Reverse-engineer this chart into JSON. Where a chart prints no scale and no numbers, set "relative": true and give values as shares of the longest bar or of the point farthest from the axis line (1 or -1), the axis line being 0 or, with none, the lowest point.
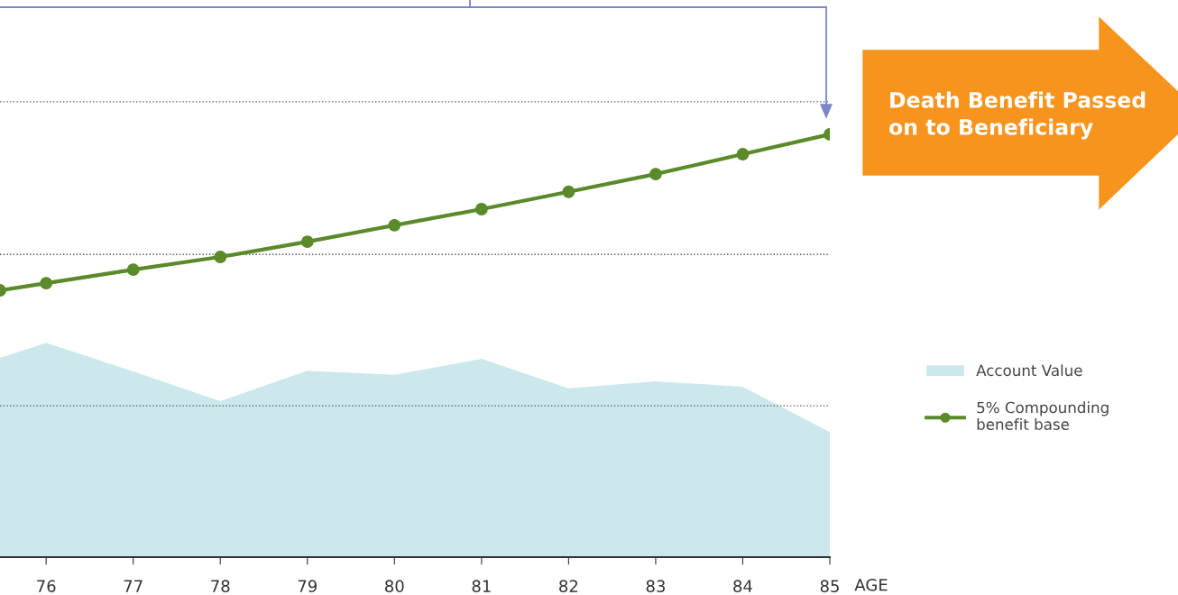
{
  "chart_data": {
    "type": "line",
    "relative": true,
    "xlabel": "AGE",
    "x": [
      75.47,
      76,
      77,
      78,
      79,
      80,
      81,
      82,
      83,
      84,
      85
    ],
    "xlim": [
      75.47,
      85
    ],
    "xticks": [
      76,
      77,
      78,
      79,
      80,
      81,
      82,
      83,
      84,
      85
    ],
    "series": [
      {
        "name": "Account Value",
        "type": "area",
        "color": "#cce8ec",
        "values": [
          0.471,
          0.507,
          0.439,
          0.369,
          0.441,
          0.431,
          0.469,
          0.399,
          0.416,
          0.403,
          0.296
        ]
      },
      {
        "name": "5% Compounding\nbenefit base",
        "marker": "circle",
        "color": "#5a8a2a",
        "values": [
          0.631,
          0.648,
          0.68,
          0.71,
          0.746,
          0.785,
          0.823,
          0.864,
          0.906,
          0.953,
          1.0
        ]
      }
    ],
    "ref_lines": [
      {
        "axis": "y",
        "value": 0.358,
        "line_style": "dotted",
        "color": "#555555"
      },
      {
        "axis": "y",
        "value": 0.716,
        "line_style": "dotted",
        "color": "#555555"
      },
      {
        "axis": "y",
        "value": 1.077,
        "line_style": "dotted",
        "color": "#555555"
      }
    ],
    "annotations": [
      "Death Benefit Passed\non to Beneficiary"
    ],
    "legend": "right",
    "grid": false
  }
}
